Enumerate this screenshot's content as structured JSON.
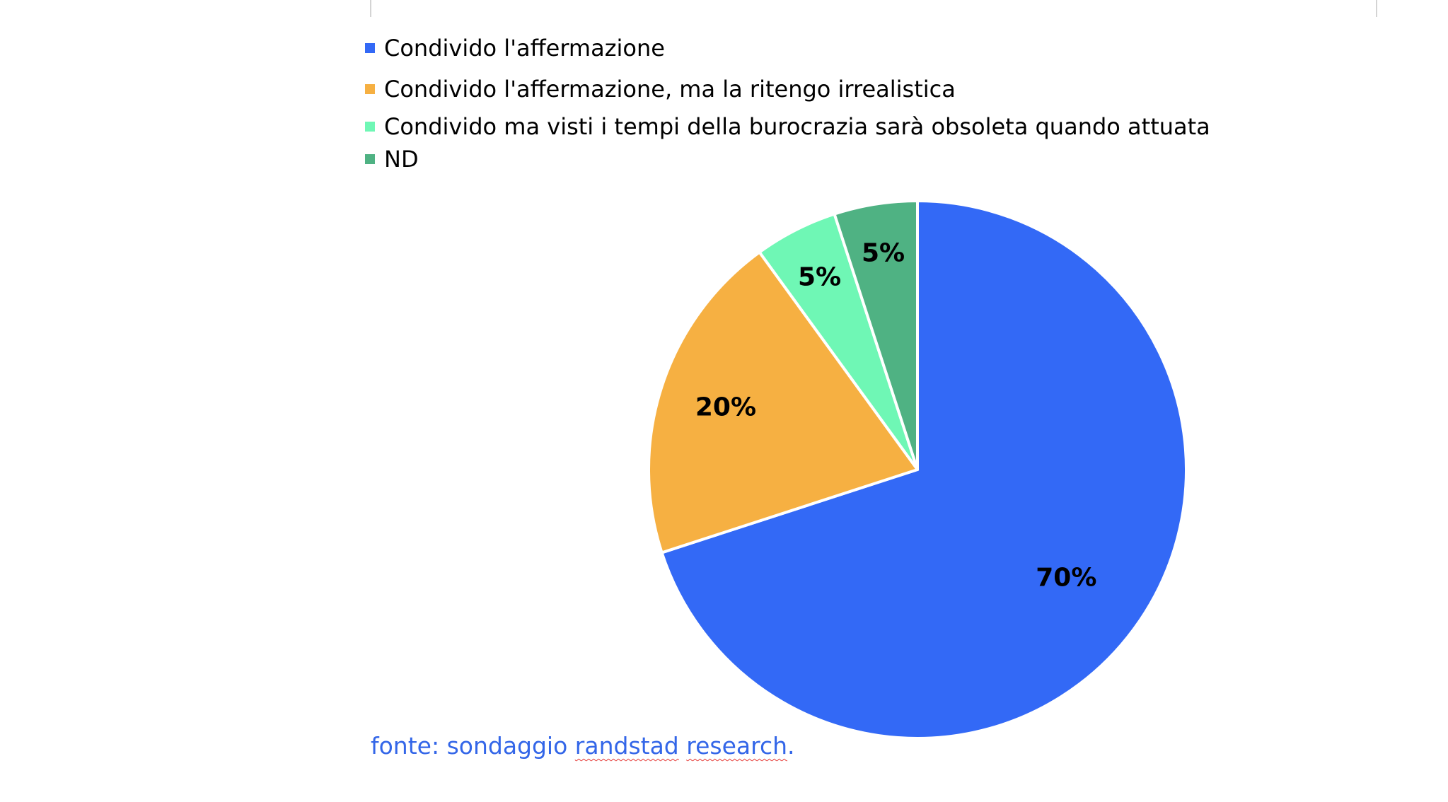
{
  "chart_data": {
    "type": "pie",
    "categories": [
      "Condivido l'affermazione",
      "Condivido l'affermazione, ma la ritengo irrealistica",
      "Condivido ma visti i tempi della burocrazia sarà  obsoleta quando attuata",
      "ND"
    ],
    "values": [
      70,
      20,
      5,
      5
    ],
    "data_labels": [
      "70%",
      "20%",
      "5%",
      "5%"
    ],
    "colors": [
      "#3369f6",
      "#f6b042",
      "#6ff7b5",
      "#4fb283"
    ],
    "legend_position": "top-left",
    "title": ""
  },
  "source": {
    "prefix": "fonte: sondaggio ",
    "word1": "randstad",
    "space": " ",
    "word2": "research",
    "suffix": "."
  }
}
